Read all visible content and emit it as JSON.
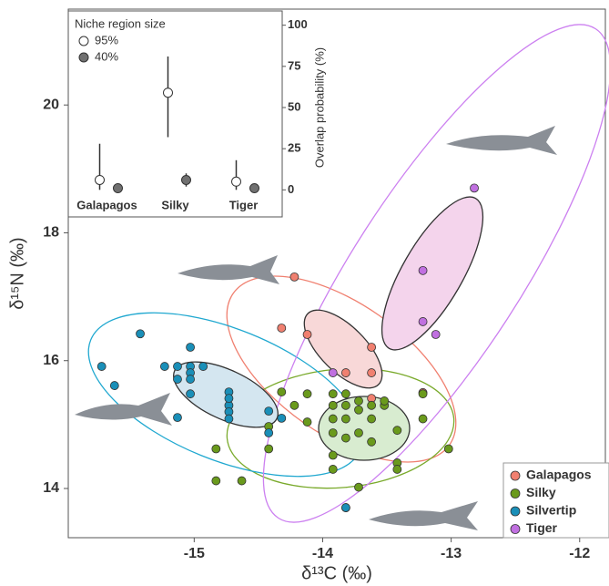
{
  "chart_data": [
    {
      "type": "scatter",
      "xlabel": "δ¹³C (‰)",
      "ylabel": "δ¹⁵N (‰)",
      "xlim": [
        -15.98,
        -11.8
      ],
      "ylim": [
        13.23,
        21.5
      ],
      "xticks": [
        -15,
        -14,
        -13,
        -12
      ],
      "yticks": [
        14,
        16,
        18,
        20
      ],
      "legend": "lower right",
      "series": [
        {
          "name": "Galapagos",
          "color": "#f08070",
          "x": [
            -14.22,
            -14.32,
            -14.12,
            -13.82,
            -13.62,
            -13.62,
            -13.22,
            -13.62
          ],
          "y": [
            17.31,
            16.51,
            16.41,
            15.81,
            15.81,
            15.41,
            15.5,
            16.21
          ]
        },
        {
          "name": "Silky",
          "color": "#6a9a1c",
          "x": [
            -14.83,
            -14.83,
            -14.63,
            -14.42,
            -14.42,
            -14.32,
            -14.22,
            -14.12,
            -14.12,
            -13.92,
            -13.92,
            -13.92,
            -13.92,
            -13.92,
            -13.92,
            -13.82,
            -13.82,
            -13.82,
            -13.72,
            -13.72,
            -13.72,
            -13.62,
            -13.62,
            -13.62,
            -13.52,
            -13.52,
            -13.42,
            -13.42,
            -13.42,
            -13.22,
            -13.22,
            -13.02,
            -13.82,
            -13.72,
            -13.82
          ],
          "y": [
            14.62,
            14.12,
            14.12,
            14.62,
            14.97,
            15.51,
            15.3,
            15.48,
            15.04,
            15.48,
            15.3,
            15.09,
            14.87,
            14.52,
            14.3,
            15.48,
            15.3,
            15.09,
            15.37,
            15.23,
            14.87,
            15.3,
            15.09,
            14.73,
            15.3,
            15.37,
            14.91,
            14.4,
            14.3,
            15.48,
            15.09,
            14.62,
            13.7,
            14.02,
            14.79
          ]
        },
        {
          "name": "Silvertip",
          "color": "#1a8fb8",
          "x": [
            -15.42,
            -15.72,
            -15.62,
            -15.23,
            -15.13,
            -15.03,
            -15.03,
            -15.03,
            -14.93,
            -15.03,
            -15.03,
            -15.13,
            -15.13,
            -14.73,
            -14.73,
            -14.73,
            -14.73,
            -14.73,
            -14.42,
            -14.42,
            -14.32,
            -13.82
          ],
          "y": [
            16.42,
            15.91,
            15.61,
            15.91,
            15.91,
            16.21,
            15.91,
            15.81,
            15.91,
            15.71,
            15.48,
            15.71,
            15.11,
            15.51,
            15.3,
            15.2,
            15.09,
            15.41,
            15.21,
            14.87,
            15.1,
            13.7
          ]
        },
        {
          "name": "Tiger",
          "color": "#c070e0",
          "x": [
            -12.82,
            -13.22,
            -13.22,
            -13.12,
            -13.92
          ],
          "y": [
            18.7,
            17.41,
            16.61,
            16.41,
            15.81
          ]
        }
      ]
    },
    {
      "type": "errorbar",
      "title": "Niche region size",
      "ylabel": "Overlap probability (%)",
      "categories": [
        "Galapagos",
        "Silky",
        "Tiger"
      ],
      "ylim": [
        -12,
        107
      ],
      "yticks": [
        0,
        25,
        50,
        75,
        100
      ],
      "series": [
        {
          "name": "95%",
          "color": "#ffffff",
          "values": [
            6,
            59,
            5
          ],
          "lower": [
            0,
            32,
            0
          ],
          "upper": [
            28,
            81,
            18
          ]
        },
        {
          "name": "40%",
          "color": "#707070",
          "values": [
            1,
            6,
            1
          ],
          "lower": [
            1,
            2,
            1
          ],
          "upper": [
            1,
            10,
            1
          ]
        }
      ]
    }
  ]
}
